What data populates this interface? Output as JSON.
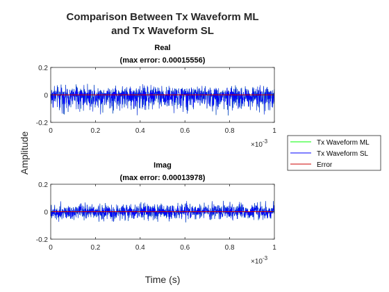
{
  "figure": {
    "title_line1": "Comparison Between Tx Waveform ML",
    "title_line2": "and Tx Waveform SL",
    "ylabel": "Amplitude",
    "xlabel": "Time (s)"
  },
  "legend": {
    "entries": [
      {
        "label": "Tx Waveform ML",
        "color": "#00ff00"
      },
      {
        "label": "Tx Waveform SL",
        "color": "#0000ff"
      },
      {
        "label": "Error",
        "color": "#cc0000"
      }
    ]
  },
  "chart_data": [
    {
      "type": "line",
      "title": "Real",
      "subtitle": "(max error: 0.00015556)",
      "xlim": [
        0,
        0.001
      ],
      "ylim": [
        -0.2,
        0.2
      ],
      "x_ticks": [
        "0",
        "0.2",
        "0.4",
        "0.6",
        "0.8",
        "1"
      ],
      "y_ticks": [
        "0.2",
        "0",
        "-0.2"
      ],
      "x_exponent_base": "×10",
      "x_exponent_power": "-3",
      "series": [
        {
          "name": "Tx Waveform ML",
          "color": "#00ff00",
          "amplitude_range": [
            -0.17,
            0.09
          ]
        },
        {
          "name": "Tx Waveform SL",
          "color": "#0000ff",
          "amplitude_range": [
            -0.17,
            0.09
          ]
        },
        {
          "name": "Error",
          "color": "#cc0000",
          "max_abs": 0.00015556
        }
      ]
    },
    {
      "type": "line",
      "title": "Imag",
      "subtitle": "(max error: 0.00013978)",
      "xlim": [
        0,
        0.001
      ],
      "ylim": [
        -0.2,
        0.2
      ],
      "x_ticks": [
        "0",
        "0.2",
        "0.4",
        "0.6",
        "0.8",
        "1"
      ],
      "y_ticks": [
        "0.2",
        "0",
        "-0.2"
      ],
      "x_exponent_base": "×10",
      "x_exponent_power": "-3",
      "series": [
        {
          "name": "Tx Waveform ML",
          "color": "#00ff00",
          "amplitude_range": [
            -0.09,
            0.09
          ]
        },
        {
          "name": "Tx Waveform SL",
          "color": "#0000ff",
          "amplitude_range": [
            -0.09,
            0.09
          ]
        },
        {
          "name": "Error",
          "color": "#cc0000",
          "max_abs": 0.00013978
        }
      ]
    }
  ]
}
